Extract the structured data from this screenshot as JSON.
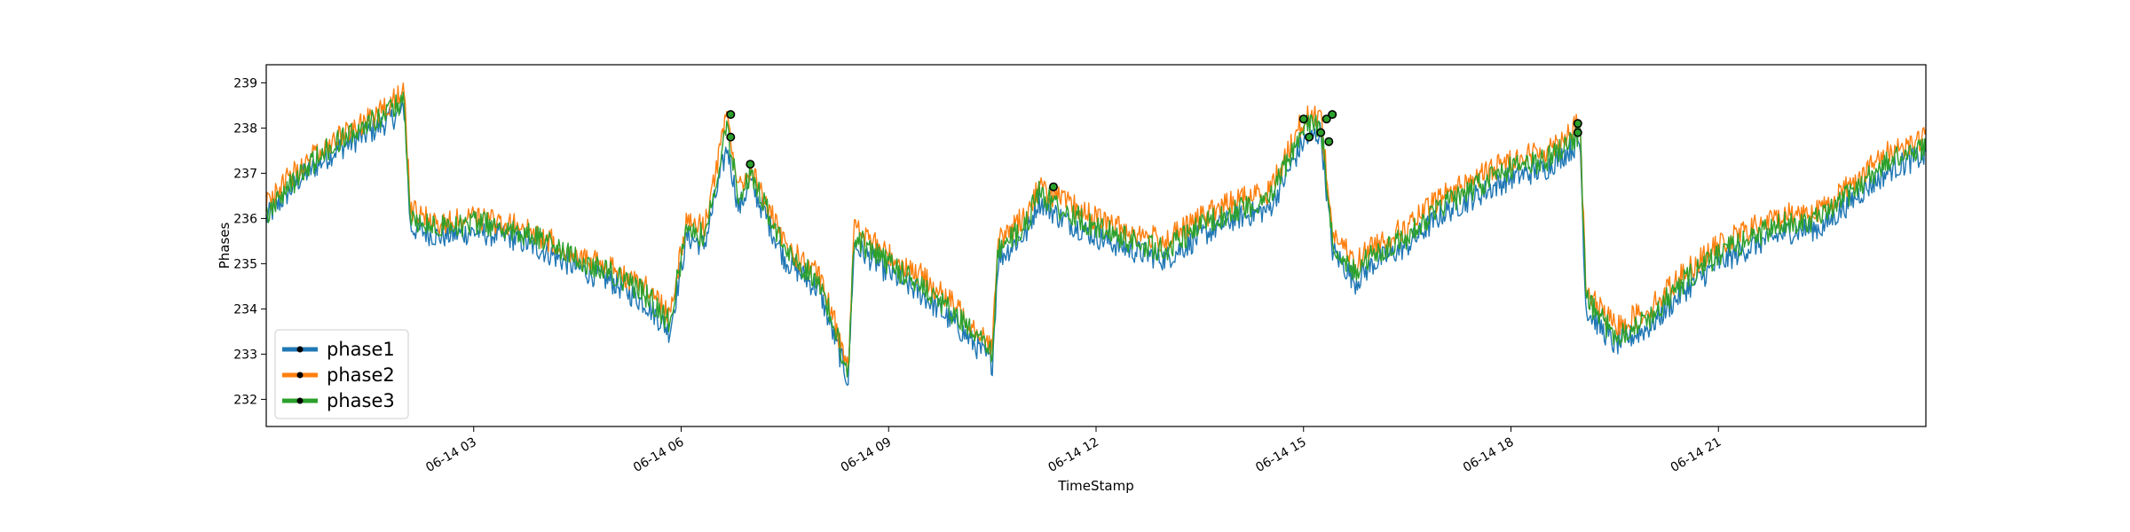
{
  "chart_data": {
    "type": "line",
    "title": "",
    "xlabel": "TimeStamp",
    "ylabel": "Phases",
    "xlim": [
      "2023-06-14 00:00",
      "2023-06-15 00:00"
    ],
    "ylim": [
      231.4,
      239.4
    ],
    "x_ticks": [
      "2023-06-14 03:00",
      "2023-06-14 06:00",
      "2023-06-14 09:00",
      "2023-06-14 12:00",
      "2023-06-14 15:00",
      "2023-06-14 18:00",
      "2023-06-14 21:00"
    ],
    "x_tick_labels": [
      "06-14 03",
      "06-14 06",
      "06-14 09",
      "06-14 12",
      "06-14 15",
      "06-14 18",
      "06-14 21"
    ],
    "y_ticks": [
      232,
      233,
      234,
      235,
      236,
      237,
      238,
      239
    ],
    "legend": {
      "position": "lower-left"
    },
    "grid": false,
    "x": [
      "2023-06-14 00:00",
      "2023-06-14 00:30",
      "2023-06-14 01:00",
      "2023-06-14 01:30",
      "2023-06-14 02:00",
      "2023-06-14 02:05",
      "2023-06-14 02:30",
      "2023-06-14 03:00",
      "2023-06-14 03:30",
      "2023-06-14 04:00",
      "2023-06-14 04:30",
      "2023-06-14 05:00",
      "2023-06-14 05:30",
      "2023-06-14 05:50",
      "2023-06-14 06:05",
      "2023-06-14 06:20",
      "2023-06-14 06:40",
      "2023-06-14 06:50",
      "2023-06-14 07:00",
      "2023-06-14 07:30",
      "2023-06-14 08:00",
      "2023-06-14 08:25",
      "2023-06-14 08:30",
      "2023-06-14 09:00",
      "2023-06-14 09:30",
      "2023-06-14 10:00",
      "2023-06-14 10:30",
      "2023-06-14 10:35",
      "2023-06-14 11:00",
      "2023-06-14 11:10",
      "2023-06-14 11:30",
      "2023-06-14 12:00",
      "2023-06-14 12:30",
      "2023-06-14 13:00",
      "2023-06-14 13:30",
      "2023-06-14 14:00",
      "2023-06-14 14:30",
      "2023-06-14 15:00",
      "2023-06-14 15:15",
      "2023-06-14 15:25",
      "2023-06-14 15:45",
      "2023-06-14 16:00",
      "2023-06-14 16:30",
      "2023-06-14 17:00",
      "2023-06-14 17:30",
      "2023-06-14 18:00",
      "2023-06-14 18:30",
      "2023-06-14 19:00",
      "2023-06-14 19:05",
      "2023-06-14 19:30",
      "2023-06-14 20:00",
      "2023-06-14 20:30",
      "2023-06-14 21:00",
      "2023-06-14 21:30",
      "2023-06-14 22:00",
      "2023-06-14 22:30",
      "2023-06-14 23:00",
      "2023-06-14 23:30",
      "2023-06-15 00:00"
    ],
    "series": [
      {
        "name": "phase1",
        "color": "#1f77b4",
        "values": [
          236.0,
          236.9,
          237.5,
          237.9,
          238.4,
          235.8,
          235.6,
          235.7,
          235.6,
          235.3,
          234.9,
          234.6,
          234.1,
          233.5,
          235.6,
          235.4,
          237.6,
          236.2,
          236.8,
          235.1,
          234.4,
          232.4,
          235.4,
          234.8,
          234.3,
          233.6,
          232.8,
          235.1,
          235.7,
          236.4,
          236.0,
          235.6,
          235.3,
          235.1,
          235.6,
          236.0,
          236.2,
          237.7,
          237.9,
          235.3,
          234.6,
          235.0,
          235.4,
          236.1,
          236.5,
          236.9,
          237.1,
          237.7,
          234.0,
          233.2,
          233.6,
          234.4,
          235.0,
          235.4,
          235.7,
          235.8,
          236.5,
          237.1,
          237.4
        ]
      },
      {
        "name": "phase2",
        "color": "#ff7f0e",
        "values": [
          236.3,
          237.2,
          237.8,
          238.2,
          238.8,
          236.2,
          235.9,
          236.0,
          235.9,
          235.6,
          235.2,
          234.9,
          234.5,
          233.9,
          236.0,
          235.8,
          238.3,
          236.6,
          237.1,
          235.4,
          234.7,
          232.8,
          235.8,
          235.2,
          234.7,
          234.0,
          233.2,
          235.5,
          236.1,
          236.7,
          236.4,
          236.0,
          235.7,
          235.5,
          236.0,
          236.4,
          236.6,
          238.2,
          238.3,
          235.7,
          235.0,
          235.4,
          235.8,
          236.5,
          236.9,
          237.3,
          237.5,
          238.1,
          234.4,
          233.6,
          234.0,
          234.8,
          235.4,
          235.8,
          236.1,
          236.2,
          236.9,
          237.5,
          237.8
        ]
      },
      {
        "name": "phase3",
        "color": "#2ca02c",
        "values": [
          236.1,
          237.0,
          237.7,
          238.1,
          238.6,
          236.0,
          235.8,
          235.9,
          235.8,
          235.5,
          235.1,
          234.8,
          234.3,
          233.7,
          235.8,
          235.6,
          238.0,
          236.4,
          237.0,
          235.3,
          234.6,
          232.6,
          235.6,
          235.0,
          234.5,
          233.8,
          233.0,
          235.3,
          235.9,
          236.6,
          236.2,
          235.8,
          235.5,
          235.3,
          235.8,
          236.2,
          236.4,
          238.0,
          238.1,
          235.5,
          234.8,
          235.2,
          235.6,
          236.3,
          236.7,
          237.1,
          237.3,
          237.9,
          234.2,
          233.4,
          233.8,
          234.6,
          235.2,
          235.6,
          235.9,
          236.0,
          236.7,
          237.3,
          237.6
        ]
      }
    ],
    "markers": [
      {
        "x": "2023-06-14 06:43",
        "y": 238.3
      },
      {
        "x": "2023-06-14 06:43",
        "y": 237.8
      },
      {
        "x": "2023-06-14 07:00",
        "y": 237.2
      },
      {
        "x": "2023-06-14 11:23",
        "y": 236.7
      },
      {
        "x": "2023-06-14 15:00",
        "y": 238.2
      },
      {
        "x": "2023-06-14 15:05",
        "y": 237.8
      },
      {
        "x": "2023-06-14 15:15",
        "y": 237.9
      },
      {
        "x": "2023-06-14 15:20",
        "y": 238.2
      },
      {
        "x": "2023-06-14 15:25",
        "y": 238.3
      },
      {
        "x": "2023-06-14 15:22",
        "y": 237.7
      },
      {
        "x": "2023-06-14 18:58",
        "y": 238.1
      },
      {
        "x": "2023-06-14 18:58",
        "y": 237.9
      }
    ]
  }
}
